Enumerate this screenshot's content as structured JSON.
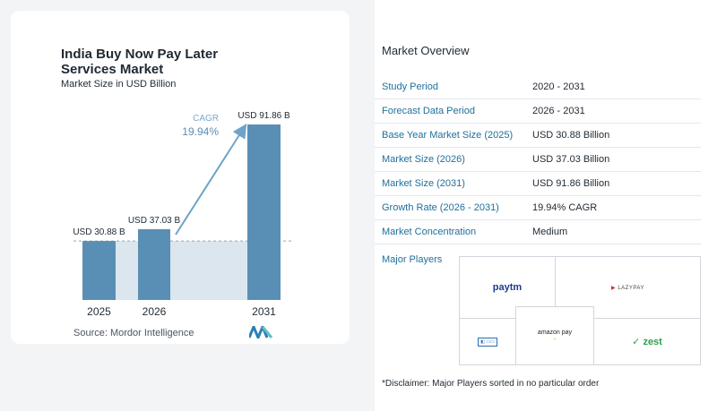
{
  "chart_data": {
    "type": "bar",
    "title": "India Buy Now Pay Later Services Market",
    "subtitle": "Market Size in USD Billion",
    "categories": [
      "2025",
      "2026",
      "2031"
    ],
    "values": [
      30.88,
      37.03,
      91.86
    ],
    "value_labels": [
      "USD 30.88 B",
      "USD 37.03 B",
      "USD 91.86 B"
    ],
    "cagr_label": "CAGR",
    "cagr_value": "19.94%",
    "colors": {
      "bar": "#5a8fb5",
      "bar_top": "#6ea3c9",
      "band": "#dbe6ef",
      "arrow": "#6ea3c9"
    }
  },
  "source": "Source: Mordor Intelligence",
  "overview": {
    "title": "Market Overview",
    "rows": [
      {
        "label": "Study Period",
        "value": "2020 - 2031"
      },
      {
        "label": "Forecast Data Period",
        "value": "2026 - 2031"
      },
      {
        "label": "Base Year Market Size (2025)",
        "value": "USD 30.88 Billion"
      },
      {
        "label": "Market Size (2026)",
        "value": "USD 37.03 Billion"
      },
      {
        "label": "Market Size (2031)",
        "value": "USD 91.86 Billion"
      },
      {
        "label": "Growth Rate (2026 - 2031)",
        "value": "19.94% CAGR"
      },
      {
        "label": "Market Concentration",
        "value": "Medium"
      }
    ]
  },
  "players": {
    "title": "Major Players",
    "logos": [
      "paytm",
      "LAZYPAY",
      "amazon pay",
      "zest"
    ],
    "disclaimer": "*Disclaimer: Major Players sorted in no particular order"
  }
}
